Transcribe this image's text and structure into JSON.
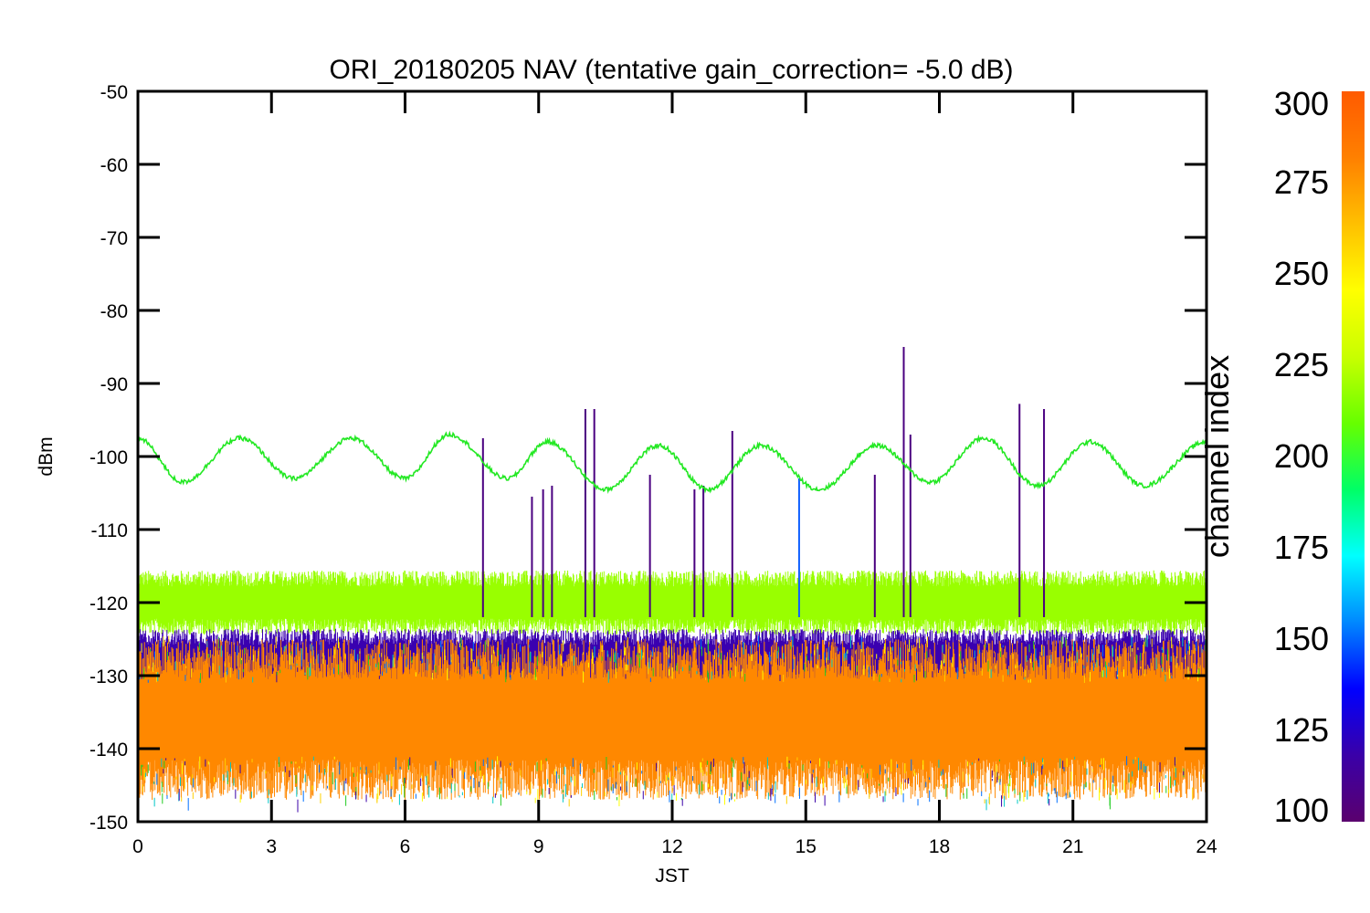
{
  "chart_data": {
    "type": "line",
    "title": "ORI_20180205 NAV (tentative gain_correction= -5.0 dB)",
    "xlabel": "JST",
    "ylabel": "dBm",
    "xlim": [
      0,
      24
    ],
    "ylim": [
      -150,
      -50
    ],
    "xticks": [
      0,
      3,
      6,
      9,
      12,
      15,
      18,
      21,
      24
    ],
    "xtick_labels": [
      "0",
      "3",
      "6",
      "9",
      "12",
      "15",
      "18",
      "21",
      "24"
    ],
    "yticks": [
      -50,
      -60,
      -70,
      -80,
      -90,
      -100,
      -110,
      -120,
      -130,
      -140,
      -150
    ],
    "ytick_labels": [
      "-50",
      "-60",
      "-70",
      "-80",
      "-90",
      "-100",
      "-110",
      "-120",
      "-130",
      "-140",
      "-150"
    ],
    "grid": false,
    "colorbar": {
      "label": "channel index",
      "range": [
        100,
        300
      ],
      "ticks": [
        100,
        125,
        150,
        175,
        200,
        225,
        250,
        275,
        300
      ],
      "tick_labels": [
        "100",
        "125",
        "150",
        "175",
        "200",
        "225",
        "250",
        "275",
        "300"
      ],
      "stops": [
        "#5a006e",
        "#3a00a8",
        "#0000ff",
        "#0088ff",
        "#00ffff",
        "#00ff66",
        "#66ff00",
        "#c8ff00",
        "#ffff00",
        "#ffc000",
        "#ff8000",
        "#ff5a00"
      ]
    },
    "series": [
      {
        "color": "#22e822",
        "description_values": "sinusoid centered near -100 dBm",
        "x": [
          0.0,
          1.0,
          2.3,
          3.5,
          4.8,
          6.0,
          7.0,
          8.3,
          9.2,
          10.5,
          11.7,
          12.8,
          14.0,
          15.3,
          16.6,
          17.8,
          19.0,
          20.2,
          21.4,
          22.6,
          24.0
        ],
        "y": [
          -97.5,
          -103.5,
          -97.5,
          -103.0,
          -97.5,
          -103.0,
          -97.0,
          -103.0,
          -98.0,
          -104.5,
          -98.5,
          -104.5,
          -98.5,
          -104.5,
          -98.5,
          -103.5,
          -97.5,
          -104.0,
          -98.0,
          -104.0,
          -98.0
        ]
      },
      {
        "color": "#99ff00",
        "description_values": "noise band",
        "x": [
          0,
          24
        ],
        "y_low": -124,
        "y_high": -116
      },
      {
        "color": "#3a00b0",
        "description_values": "noise band",
        "x": [
          0,
          24
        ],
        "y_low": -132,
        "y_high": -124
      },
      {
        "color": "#ff8800",
        "description_values": "noise band",
        "x": [
          0,
          24
        ],
        "y_low": -146,
        "y_high": -126
      }
    ],
    "spikes": [
      {
        "x": 7.75,
        "y_top": -97.5,
        "color": "#4a0080"
      },
      {
        "x": 8.85,
        "y_top": -105.5,
        "color": "#4a0080"
      },
      {
        "x": 9.1,
        "y_top": -104.5,
        "color": "#4a0080"
      },
      {
        "x": 9.3,
        "y_top": -104.0,
        "color": "#4a0080"
      },
      {
        "x": 10.05,
        "y_top": -93.5,
        "color": "#4a0080"
      },
      {
        "x": 10.25,
        "y_top": -93.5,
        "color": "#4a0080"
      },
      {
        "x": 11.5,
        "y_top": -102.5,
        "color": "#4a0080"
      },
      {
        "x": 12.5,
        "y_top": -104.5,
        "color": "#4a0080"
      },
      {
        "x": 12.7,
        "y_top": -104.0,
        "color": "#4a0080"
      },
      {
        "x": 13.35,
        "y_top": -96.5,
        "color": "#4a0080"
      },
      {
        "x": 16.55,
        "y_top": -102.5,
        "color": "#4a0080"
      },
      {
        "x": 17.2,
        "y_top": -85.0,
        "color": "#4a0080"
      },
      {
        "x": 17.35,
        "y_top": -97.0,
        "color": "#4a0080"
      },
      {
        "x": 19.8,
        "y_top": -92.8,
        "color": "#4a0080"
      },
      {
        "x": 20.35,
        "y_top": -93.5,
        "color": "#4a0080"
      },
      {
        "x": 14.85,
        "y_top": -103.0,
        "color": "#1060ff"
      }
    ]
  }
}
